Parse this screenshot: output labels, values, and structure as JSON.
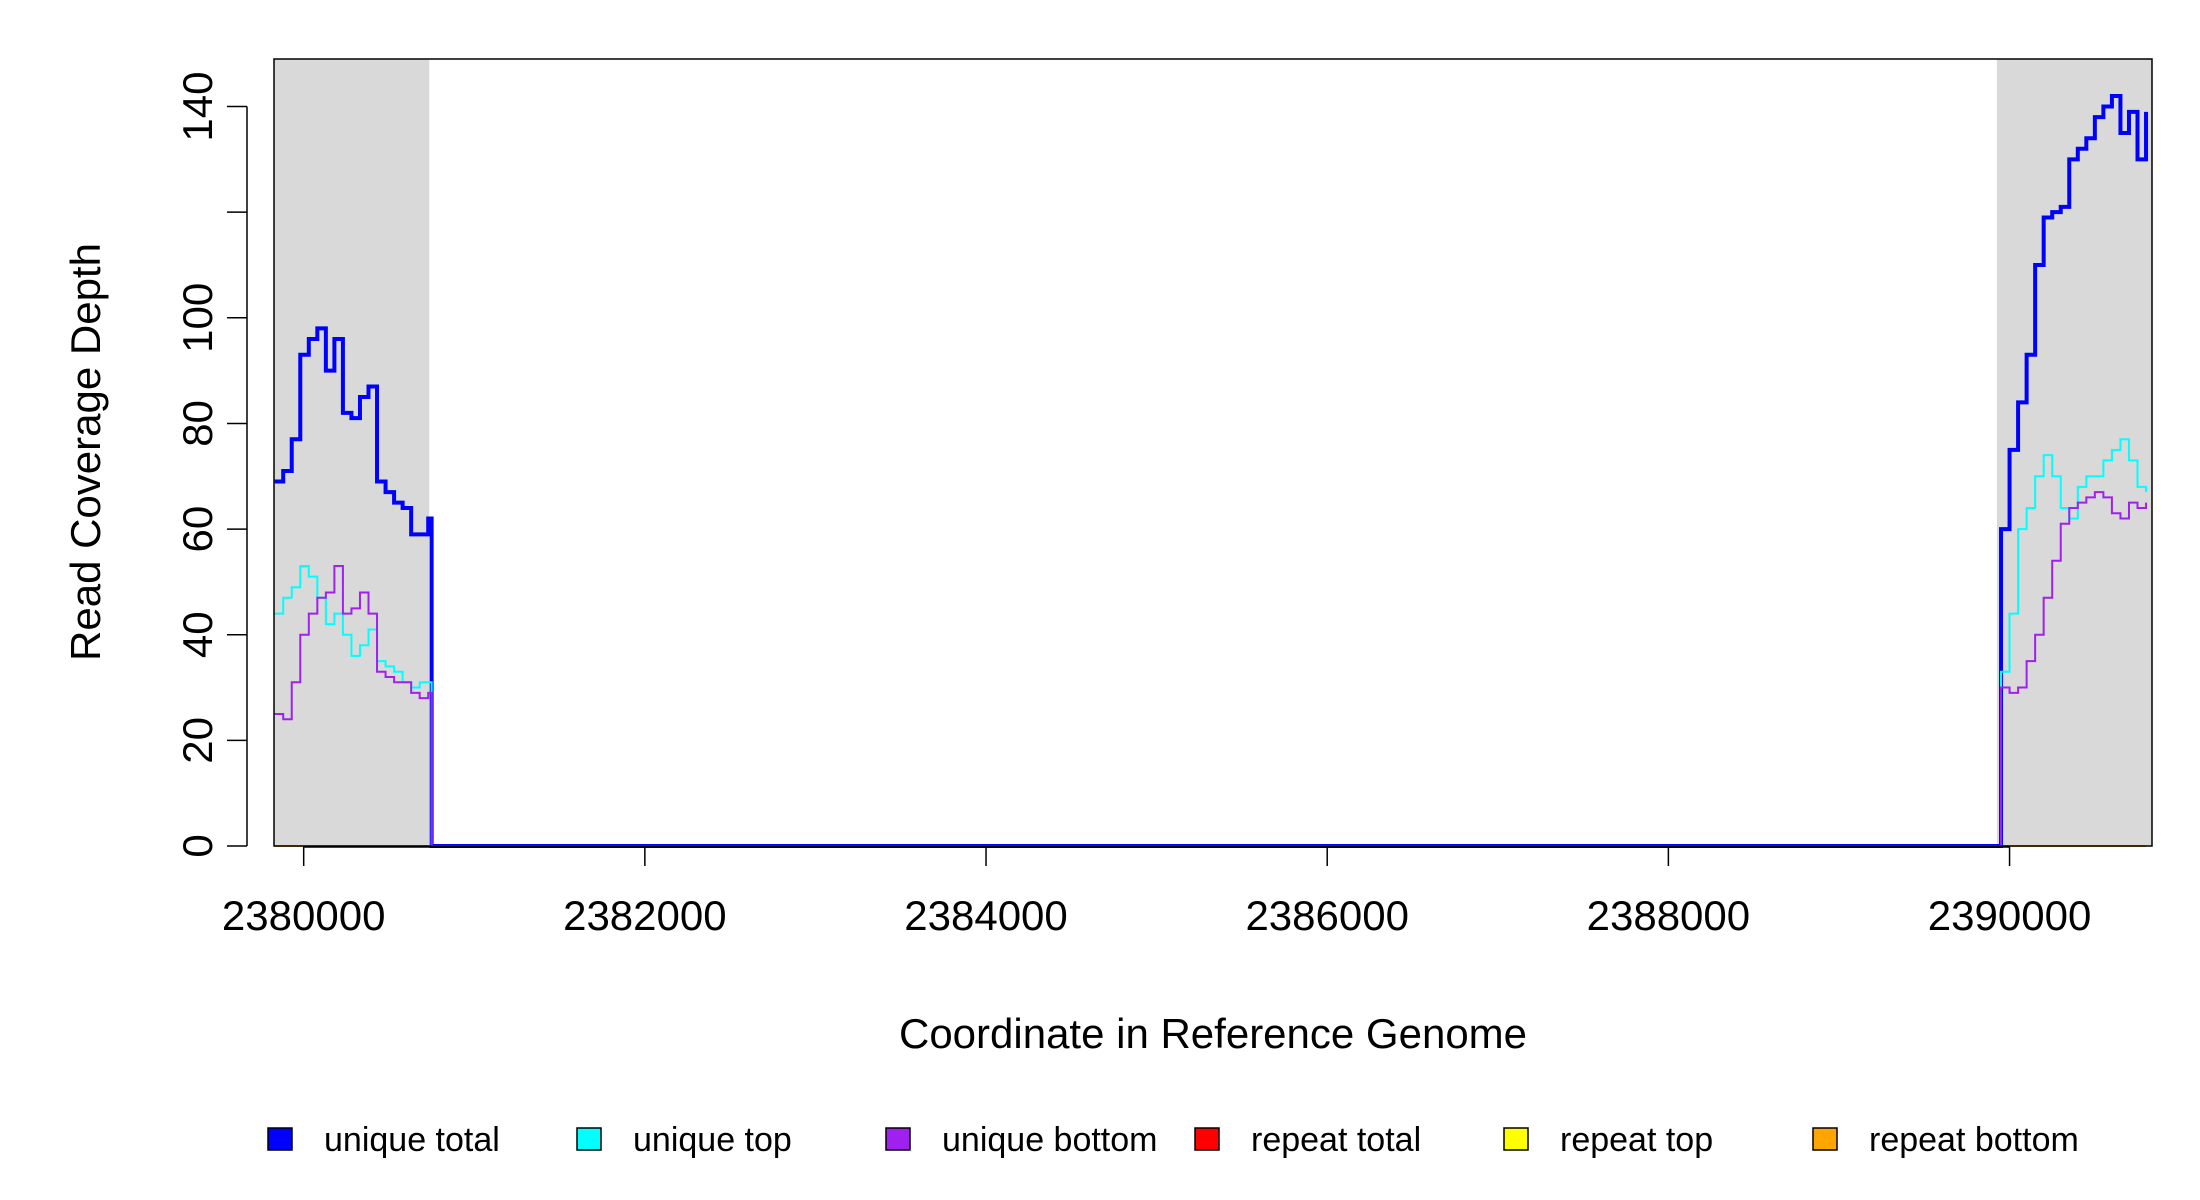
{
  "chart_data": {
    "type": "step",
    "xlabel": "Coordinate in Reference Genome",
    "ylabel": "Read Coverage Depth",
    "xlim": [
      2379826,
      2390835
    ],
    "ylim": [
      0,
      149
    ],
    "xticks": [
      2380000,
      2382000,
      2384000,
      2386000,
      2388000,
      2390000
    ],
    "yticks": [
      0,
      20,
      40,
      60,
      80,
      100,
      {
        "value": 120,
        "label": null
      },
      140
    ],
    "shaded_regions": [
      [
        2379826,
        2380736
      ],
      [
        2389926,
        2390835
      ]
    ],
    "shade_color": "#d9d9d9",
    "x": [
      2379830,
      2379880,
      2379930,
      2379980,
      2380030,
      2380080,
      2380130,
      2380180,
      2380230,
      2380280,
      2380330,
      2380380,
      2380430,
      2380480,
      2380530,
      2380580,
      2380630,
      2380680,
      2380730,
      2380750,
      2389940,
      2389950,
      2390000,
      2390050,
      2390100,
      2390150,
      2390200,
      2390250,
      2390300,
      2390350,
      2390400,
      2390450,
      2390500,
      2390550,
      2390600,
      2390650,
      2390700,
      2390750,
      2390800
    ],
    "series": [
      {
        "name": "unique total",
        "color": "#0000ff",
        "values": [
          69,
          71,
          77,
          93,
          96,
          98,
          90,
          96,
          82,
          81,
          85,
          87,
          69,
          67,
          65,
          64,
          59,
          59,
          62,
          0,
          0,
          60,
          75,
          84,
          93,
          110,
          119,
          120,
          121,
          130,
          132,
          134,
          138,
          140,
          142,
          135,
          139,
          130,
          139
        ]
      },
      {
        "name": "unique top",
        "color": "#00ffff",
        "values": [
          44,
          47,
          49,
          53,
          51,
          47,
          42,
          44,
          40,
          36,
          38,
          41,
          35,
          34,
          33,
          31,
          30,
          31,
          31,
          0,
          0,
          33,
          44,
          60,
          64,
          70,
          74,
          70,
          64,
          62,
          68,
          70,
          70,
          73,
          75,
          77,
          73,
          68,
          67
        ]
      },
      {
        "name": "unique bottom",
        "color": "#a020f0",
        "values": [
          25,
          24,
          31,
          40,
          44,
          47,
          48,
          53,
          44,
          45,
          48,
          44,
          33,
          32,
          31,
          31,
          29,
          28,
          29,
          0,
          0,
          30,
          29,
          30,
          35,
          40,
          47,
          54,
          61,
          64,
          65,
          66,
          67,
          66,
          63,
          62,
          65,
          64,
          65
        ]
      },
      {
        "name": "repeat total",
        "color": "#ff0000",
        "values": [
          0,
          0,
          0,
          0,
          0,
          0,
          0,
          0,
          0,
          0,
          0,
          0,
          0,
          0,
          0,
          0,
          0,
          0,
          0,
          0,
          0,
          0,
          0,
          0,
          0,
          0,
          0,
          0,
          0,
          0,
          0,
          0,
          0,
          0,
          0,
          0,
          0,
          0,
          0
        ]
      },
      {
        "name": "repeat top",
        "color": "#ffff00",
        "values": [
          0,
          0,
          0,
          0,
          0,
          0,
          0,
          0,
          0,
          0,
          0,
          0,
          0,
          0,
          0,
          0,
          0,
          0,
          0,
          0,
          0,
          0,
          0,
          0,
          0,
          0,
          0,
          0,
          0,
          0,
          0,
          0,
          0,
          0,
          0,
          0,
          0,
          0,
          0
        ]
      },
      {
        "name": "repeat bottom",
        "color": "#ffa500",
        "values": [
          0,
          0,
          0,
          0,
          0,
          0,
          0,
          0,
          0,
          0,
          0,
          0,
          0,
          0,
          0,
          0,
          0,
          0,
          0,
          0,
          0,
          0,
          0,
          0,
          0,
          0,
          0,
          0,
          0,
          0,
          0,
          0,
          0,
          0,
          0,
          0,
          0,
          0,
          0
        ]
      }
    ]
  }
}
